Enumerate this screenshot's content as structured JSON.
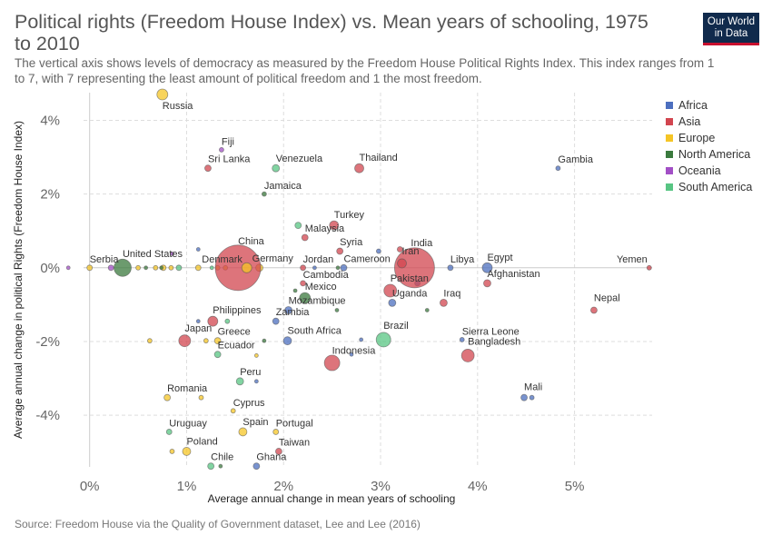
{
  "header": {
    "title": "Political rights (Freedom House Index) vs. Mean years of schooling, 1975 to 2010",
    "subtitle": "The vertical axis shows levels of democracy as measured by the Freedom House Political Rights Index. This index ranges from 1 to 7, with 7 representing the least amount of political freedom and 1 the most freedom.",
    "logo_line1": "Our World",
    "logo_line2": "in Data"
  },
  "footer": {
    "source": "Source: Freedom House via the Quality of Government dataset, Lee and Lee (2016)"
  },
  "colors": {
    "Africa": "#4c6fbf",
    "Asia": "#d2454f",
    "Europe": "#f5c526",
    "North America": "#3b7a3e",
    "Oceania": "#a24fc6",
    "South America": "#58c583"
  },
  "chart_data": {
    "type": "scatter",
    "xlabel": "Average annual change in mean years of schooling",
    "ylabel": "Average annual change in political Rights (Freedom House Index)",
    "xlim": [
      -0.25,
      5.8
    ],
    "ylim": [
      -5.4,
      4.75
    ],
    "xticks": [
      0,
      1,
      2,
      3,
      4,
      5
    ],
    "xtick_labels": [
      "0%",
      "1%",
      "2%",
      "3%",
      "4%",
      "5%"
    ],
    "yticks": [
      4,
      2,
      0,
      -2,
      -4
    ],
    "ytick_labels": [
      "4%",
      "2%",
      "0%",
      "-2%",
      "-4%"
    ],
    "grid": true,
    "legend": {
      "position": "right",
      "entries": [
        "Africa",
        "Asia",
        "Europe",
        "North America",
        "Oceania",
        "South America"
      ]
    },
    "points": [
      {
        "name": "Russia",
        "x": 0.75,
        "y": 4.7,
        "region": "Europe",
        "size": 6
      },
      {
        "name": "Fiji",
        "x": 1.36,
        "y": 3.2,
        "region": "Oceania",
        "size": 2.5
      },
      {
        "name": "Sri Lanka",
        "x": 1.22,
        "y": 2.7,
        "region": "Asia",
        "size": 3.5
      },
      {
        "name": "Venezuela",
        "x": 1.92,
        "y": 2.7,
        "region": "South America",
        "size": 4
      },
      {
        "name": "Thailand",
        "x": 2.78,
        "y": 2.7,
        "region": "Asia",
        "size": 5
      },
      {
        "name": "Gambia",
        "x": 4.83,
        "y": 2.7,
        "region": "Africa",
        "size": 2.5
      },
      {
        "name": "Jamaica",
        "x": 1.8,
        "y": 2.0,
        "region": "North America",
        "size": 2.5
      },
      {
        "name": "Turkey",
        "x": 2.52,
        "y": 1.15,
        "region": "Asia",
        "size": 5
      },
      {
        "name": "Malaysia",
        "x": 2.22,
        "y": 0.82,
        "region": "Asia",
        "size": 3.5
      },
      {
        "name": "Syria",
        "x": 2.58,
        "y": 0.45,
        "region": "Asia",
        "size": 3.5
      },
      {
        "name": "China",
        "x": 1.53,
        "y": 0.0,
        "region": "Asia",
        "size": 25
      },
      {
        "name": "India",
        "x": 3.35,
        "y": 0.0,
        "region": "Asia",
        "size": 22
      },
      {
        "name": "United States",
        "x": 0.34,
        "y": 0.0,
        "region": "North America",
        "size": 9.5
      },
      {
        "name": "Germany",
        "x": 1.62,
        "y": 0.0,
        "region": "Europe",
        "size": 5.5
      },
      {
        "name": "Serbia",
        "x": 0.0,
        "y": 0.0,
        "region": "Europe",
        "size": 3
      },
      {
        "name": "Denmark",
        "x": 1.12,
        "y": 0.0,
        "region": "Europe",
        "size": 3
      },
      {
        "name": "Jordan",
        "x": 2.2,
        "y": 0.0,
        "region": "Asia",
        "size": 3
      },
      {
        "name": "Cameroon",
        "x": 2.62,
        "y": 0.0,
        "region": "Africa",
        "size": 3.5
      },
      {
        "name": "Iran",
        "x": 3.22,
        "y": 0.12,
        "region": "Asia",
        "size": 5
      },
      {
        "name": "Libya",
        "x": 3.72,
        "y": 0.0,
        "region": "Africa",
        "size": 3
      },
      {
        "name": "Egypt",
        "x": 4.1,
        "y": 0.0,
        "region": "Africa",
        "size": 5.5
      },
      {
        "name": "Yemen",
        "x": 5.77,
        "y": 0.0,
        "region": "Asia",
        "size": 2.5
      },
      {
        "name": "Cambodia",
        "x": 2.2,
        "y": -0.42,
        "region": "Asia",
        "size": 3
      },
      {
        "name": "Afghanistan",
        "x": 4.1,
        "y": -0.42,
        "region": "Asia",
        "size": 4
      },
      {
        "name": "Pakistan",
        "x": 3.1,
        "y": -0.62,
        "region": "Asia",
        "size": 7
      },
      {
        "name": "Mexico",
        "x": 2.22,
        "y": -0.82,
        "region": "North America",
        "size": 6
      },
      {
        "name": "Uganda",
        "x": 3.12,
        "y": -0.95,
        "region": "Africa",
        "size": 4
      },
      {
        "name": "Iraq",
        "x": 3.65,
        "y": -0.95,
        "region": "Asia",
        "size": 4
      },
      {
        "name": "Mozambique",
        "x": 2.05,
        "y": -1.15,
        "region": "Africa",
        "size": 4
      },
      {
        "name": "Nepal",
        "x": 5.2,
        "y": -1.15,
        "region": "Asia",
        "size": 3.5
      },
      {
        "name": "Philippines",
        "x": 1.27,
        "y": -1.45,
        "region": "Asia",
        "size": 5.5
      },
      {
        "name": "Zambia",
        "x": 1.92,
        "y": -1.45,
        "region": "Africa",
        "size": 3.5
      },
      {
        "name": "Japan",
        "x": 0.98,
        "y": -1.98,
        "region": "Asia",
        "size": 6.5
      },
      {
        "name": "Greece",
        "x": 1.32,
        "y": -1.98,
        "region": "Europe",
        "size": 3.5
      },
      {
        "name": "South Africa",
        "x": 2.04,
        "y": -1.98,
        "region": "Africa",
        "size": 4.5
      },
      {
        "name": "Brazil",
        "x": 3.03,
        "y": -1.95,
        "region": "South America",
        "size": 8
      },
      {
        "name": "Sierra Leone",
        "x": 3.84,
        "y": -1.95,
        "region": "Africa",
        "size": 2.5
      },
      {
        "name": "Ecuador",
        "x": 1.32,
        "y": -2.35,
        "region": "South America",
        "size": 3.5
      },
      {
        "name": "Indonesia",
        "x": 2.5,
        "y": -2.58,
        "region": "Asia",
        "size": 8.5
      },
      {
        "name": "Bangladesh",
        "x": 3.9,
        "y": -2.38,
        "region": "Asia",
        "size": 7
      },
      {
        "name": "Peru",
        "x": 1.55,
        "y": -3.08,
        "region": "South America",
        "size": 4
      },
      {
        "name": "Romania",
        "x": 0.8,
        "y": -3.52,
        "region": "Europe",
        "size": 3.5
      },
      {
        "name": "Mali",
        "x": 4.48,
        "y": -3.52,
        "region": "Africa",
        "size": 3.5
      },
      {
        "name": "Cyprus",
        "x": 1.48,
        "y": -3.88,
        "region": "Europe",
        "size": 2.5
      },
      {
        "name": "Uruguay",
        "x": 0.82,
        "y": -4.45,
        "region": "South America",
        "size": 3
      },
      {
        "name": "Spain",
        "x": 1.58,
        "y": -4.45,
        "region": "Europe",
        "size": 4.5
      },
      {
        "name": "Portugal",
        "x": 1.92,
        "y": -4.45,
        "region": "Europe",
        "size": 3
      },
      {
        "name": "Poland",
        "x": 1.0,
        "y": -4.98,
        "region": "Europe",
        "size": 4.5
      },
      {
        "name": "Taiwan",
        "x": 1.95,
        "y": -4.98,
        "region": "Asia",
        "size": 3.5
      },
      {
        "name": "Chile",
        "x": 1.25,
        "y": -5.38,
        "region": "South America",
        "size": 3.5
      },
      {
        "name": "Ghana",
        "x": 1.72,
        "y": -5.38,
        "region": "Africa",
        "size": 3.5
      }
    ],
    "unlabeled_points": [
      {
        "x": -0.22,
        "y": 0.0,
        "region": "Oceania",
        "size": 2
      },
      {
        "x": 0.22,
        "y": 0.0,
        "region": "Oceania",
        "size": 3
      },
      {
        "x": 0.5,
        "y": 0.0,
        "region": "Europe",
        "size": 2.5
      },
      {
        "x": 0.58,
        "y": 0.0,
        "region": "North America",
        "size": 2
      },
      {
        "x": 0.68,
        "y": 0.0,
        "region": "Europe",
        "size": 2.5
      },
      {
        "x": 0.76,
        "y": 0.0,
        "region": "Europe",
        "size": 3
      },
      {
        "x": 0.84,
        "y": 0.0,
        "region": "Europe",
        "size": 2.5
      },
      {
        "x": 0.92,
        "y": 0.0,
        "region": "South America",
        "size": 3
      },
      {
        "x": 1.32,
        "y": 0.0,
        "region": "Europe",
        "size": 2.5
      },
      {
        "x": 1.75,
        "y": 0.0,
        "region": "Europe",
        "size": 4
      },
      {
        "x": 1.26,
        "y": 0.0,
        "region": "South America",
        "size": 2
      },
      {
        "x": 1.4,
        "y": 0.0,
        "region": "Europe",
        "size": 2.5
      },
      {
        "x": 2.32,
        "y": 0.0,
        "region": "Africa",
        "size": 2
      },
      {
        "x": 2.56,
        "y": 0.0,
        "region": "North America",
        "size": 2
      },
      {
        "x": 2.98,
        "y": 0.45,
        "region": "Africa",
        "size": 2.5
      },
      {
        "x": 3.2,
        "y": 0.5,
        "region": "Asia",
        "size": 3
      },
      {
        "x": 3.38,
        "y": -0.42,
        "region": "Africa",
        "size": 3
      },
      {
        "x": 3.48,
        "y": -1.15,
        "region": "North America",
        "size": 2
      },
      {
        "x": 2.55,
        "y": -1.15,
        "region": "North America",
        "size": 2
      },
      {
        "x": 2.12,
        "y": -0.62,
        "region": "North America",
        "size": 2
      },
      {
        "x": 2.15,
        "y": 1.15,
        "region": "South America",
        "size": 3.5
      },
      {
        "x": 1.12,
        "y": -1.45,
        "region": "Africa",
        "size": 2
      },
      {
        "x": 1.42,
        "y": -1.45,
        "region": "South America",
        "size": 2.5
      },
      {
        "x": 0.62,
        "y": -1.98,
        "region": "Europe",
        "size": 2.5
      },
      {
        "x": 1.2,
        "y": -1.98,
        "region": "Europe",
        "size": 2.5
      },
      {
        "x": 1.8,
        "y": -1.98,
        "region": "North America",
        "size": 2
      },
      {
        "x": 2.8,
        "y": -1.95,
        "region": "Africa",
        "size": 2
      },
      {
        "x": 2.7,
        "y": -2.35,
        "region": "Africa",
        "size": 2
      },
      {
        "x": 1.72,
        "y": -2.38,
        "region": "Europe",
        "size": 2
      },
      {
        "x": 1.72,
        "y": -3.08,
        "region": "Africa",
        "size": 2
      },
      {
        "x": 1.15,
        "y": -3.52,
        "region": "Europe",
        "size": 2.5
      },
      {
        "x": 4.56,
        "y": -3.52,
        "region": "Africa",
        "size": 2.5
      },
      {
        "x": 0.85,
        "y": -4.98,
        "region": "Europe",
        "size": 2.5
      },
      {
        "x": 1.35,
        "y": -5.38,
        "region": "North America",
        "size": 2
      },
      {
        "x": 1.12,
        "y": 0.5,
        "region": "Africa",
        "size": 2
      },
      {
        "x": 0.85,
        "y": 0.38,
        "region": "Oceania",
        "size": 2
      },
      {
        "x": 0.74,
        "y": 0.0,
        "region": "North America",
        "size": 2
      }
    ]
  }
}
